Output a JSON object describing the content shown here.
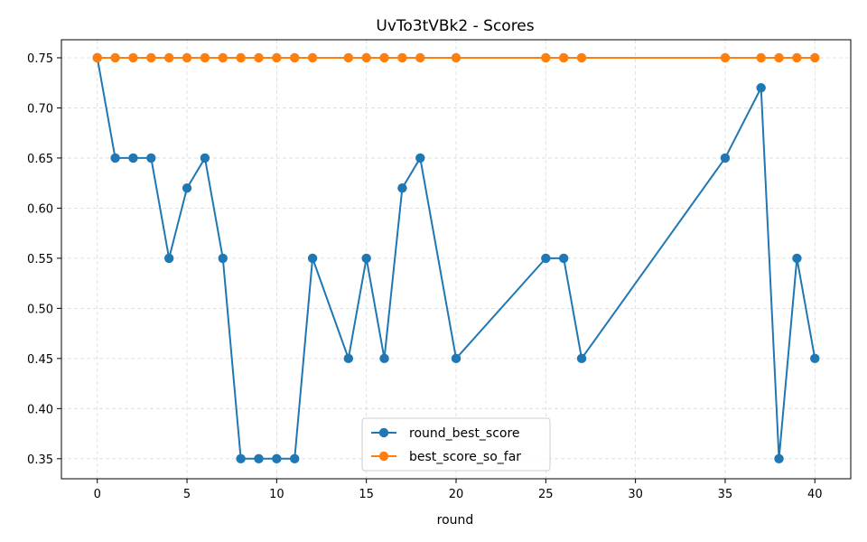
{
  "chart_data": {
    "type": "line",
    "title": "UvTo3tVBk2 - Scores",
    "xlabel": "round",
    "ylabel": "",
    "xlim": [
      -2,
      42
    ],
    "ylim": [
      0.33,
      0.768
    ],
    "xticks": [
      0,
      5,
      10,
      15,
      20,
      25,
      30,
      35,
      40
    ],
    "yticks": [
      0.35,
      0.4,
      0.45,
      0.5,
      0.55,
      0.6,
      0.65,
      0.7,
      0.75
    ],
    "grid": true,
    "legend_position": "lower-center",
    "series": [
      {
        "name": "round_best_score",
        "color": "#1f77b4",
        "x": [
          0,
          1,
          2,
          3,
          4,
          5,
          6,
          7,
          8,
          9,
          10,
          11,
          12,
          14,
          15,
          16,
          17,
          18,
          20,
          25,
          26,
          27,
          35,
          37,
          38,
          39,
          40
        ],
        "y": [
          0.75,
          0.65,
          0.65,
          0.65,
          0.55,
          0.62,
          0.65,
          0.55,
          0.35,
          0.35,
          0.35,
          0.35,
          0.55,
          0.45,
          0.55,
          0.45,
          0.62,
          0.65,
          0.45,
          0.55,
          0.55,
          0.45,
          0.65,
          0.72,
          0.35,
          0.55,
          0.45
        ]
      },
      {
        "name": "best_score_so_far",
        "color": "#ff7f0e",
        "x": [
          0,
          1,
          2,
          3,
          4,
          5,
          6,
          7,
          8,
          9,
          10,
          11,
          12,
          14,
          15,
          16,
          17,
          18,
          20,
          25,
          26,
          27,
          35,
          37,
          38,
          39,
          40
        ],
        "y": [
          0.75,
          0.75,
          0.75,
          0.75,
          0.75,
          0.75,
          0.75,
          0.75,
          0.75,
          0.75,
          0.75,
          0.75,
          0.75,
          0.75,
          0.75,
          0.75,
          0.75,
          0.75,
          0.75,
          0.75,
          0.75,
          0.75,
          0.75,
          0.75,
          0.75,
          0.75,
          0.75
        ]
      }
    ]
  }
}
